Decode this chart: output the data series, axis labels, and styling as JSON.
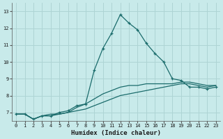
{
  "title": "",
  "xlabel": "Humidex (Indice chaleur)",
  "ylabel": "",
  "background_color": "#c8eaea",
  "grid_color": "#aed4d4",
  "line_color": "#1a6b6b",
  "xlim": [
    -0.5,
    23.5
  ],
  "ylim": [
    6.5,
    13.5
  ],
  "xticks": [
    0,
    1,
    2,
    3,
    4,
    5,
    6,
    7,
    8,
    9,
    10,
    11,
    12,
    13,
    14,
    15,
    16,
    17,
    18,
    19,
    20,
    21,
    22,
    23
  ],
  "yticks": [
    7,
    8,
    9,
    10,
    11,
    12,
    13
  ],
  "series1_x": [
    0,
    1,
    2,
    3,
    4,
    5,
    6,
    7,
    8,
    9,
    10,
    11,
    12,
    13,
    14,
    15,
    16,
    17,
    18,
    19,
    20,
    21,
    22,
    23
  ],
  "series1_y": [
    6.9,
    6.9,
    6.6,
    6.8,
    6.8,
    7.0,
    7.1,
    7.4,
    7.5,
    9.5,
    10.8,
    11.7,
    12.8,
    12.3,
    11.9,
    11.1,
    10.5,
    10.0,
    9.0,
    8.9,
    8.5,
    8.5,
    8.4,
    8.5
  ],
  "series2_x": [
    0,
    1,
    2,
    3,
    4,
    5,
    6,
    7,
    8,
    9,
    10,
    11,
    12,
    13,
    14,
    15,
    16,
    17,
    18,
    19,
    20,
    21,
    22,
    23
  ],
  "series2_y": [
    6.9,
    6.9,
    6.6,
    6.8,
    6.8,
    6.9,
    7.0,
    7.1,
    7.2,
    7.4,
    7.6,
    7.8,
    8.0,
    8.1,
    8.2,
    8.3,
    8.4,
    8.5,
    8.6,
    8.7,
    8.7,
    8.6,
    8.5,
    8.6
  ],
  "series3_x": [
    0,
    1,
    2,
    3,
    4,
    5,
    6,
    7,
    8,
    9,
    10,
    11,
    12,
    13,
    14,
    15,
    16,
    17,
    18,
    19,
    20,
    21,
    22,
    23
  ],
  "series3_y": [
    6.9,
    6.9,
    6.6,
    6.8,
    6.9,
    6.9,
    7.0,
    7.3,
    7.5,
    7.8,
    8.1,
    8.3,
    8.5,
    8.6,
    8.6,
    8.7,
    8.7,
    8.7,
    8.7,
    8.8,
    8.8,
    8.7,
    8.6,
    8.6
  ]
}
